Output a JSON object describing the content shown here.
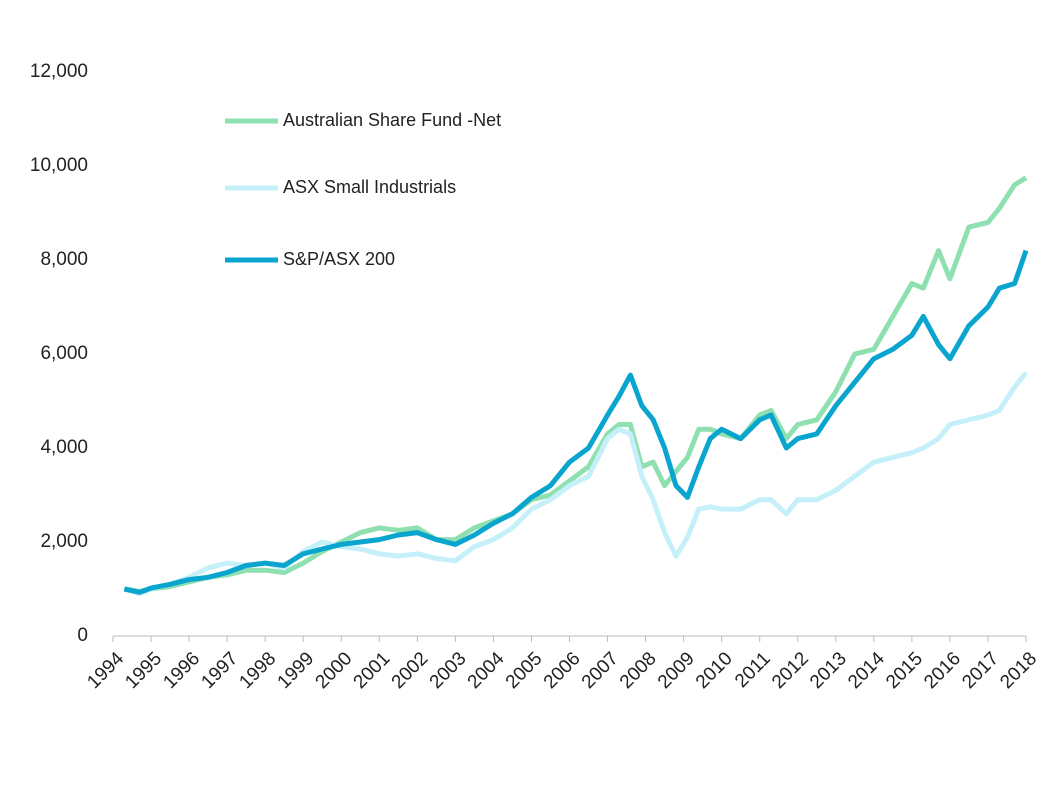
{
  "chart_data": {
    "type": "line",
    "xlim": [
      1994,
      2018
    ],
    "xticks": [
      1994,
      1995,
      1996,
      1997,
      1998,
      1999,
      2000,
      2001,
      2002,
      2003,
      2004,
      2005,
      2006,
      2007,
      2008,
      2009,
      2010,
      2011,
      2012,
      2013,
      2014,
      2015,
      2016,
      2017,
      2018
    ],
    "ylim": [
      0,
      12000
    ],
    "yticks": [
      0,
      {
        "value": 2000,
        "label": "2,000"
      },
      {
        "value": 4000,
        "label": "4,000"
      },
      {
        "value": 6000,
        "label": "6,000"
      },
      {
        "value": 8000,
        "label": "8,000"
      },
      {
        "value": 10000,
        "label": "10,000"
      },
      {
        "value": 12000,
        "label": "12,000"
      }
    ],
    "legend": "upper left",
    "x": [
      1994.3,
      1994.7,
      1995,
      1995.5,
      1996,
      1996.5,
      1997,
      1997.5,
      1998,
      1998.5,
      1999,
      1999.5,
      2000,
      2000.5,
      2001,
      2001.5,
      2002,
      2002.5,
      2003,
      2003.5,
      2004,
      2004.5,
      2005,
      2005.5,
      2006,
      2006.5,
      2007,
      2007.3,
      2007.6,
      2007.9,
      2008.2,
      2008.5,
      2008.8,
      2009.1,
      2009.4,
      2009.7,
      2010,
      2010.5,
      2011,
      2011.3,
      2011.7,
      2012,
      2012.5,
      2013,
      2013.5,
      2014,
      2014.5,
      2015,
      2015.3,
      2015.7,
      2016,
      2016.5,
      2017,
      2017.3,
      2017.7,
      2018
    ],
    "series": [
      {
        "name": "Australian Share Fund -Net",
        "color": "#8fe0b0",
        "values": [
          1000,
          950,
          1000,
          1050,
          1150,
          1250,
          1300,
          1400,
          1400,
          1350,
          1550,
          1800,
          2000,
          2200,
          2300,
          2250,
          2300,
          2050,
          2050,
          2300,
          2450,
          2600,
          2900,
          3000,
          3300,
          3600,
          4300,
          4500,
          4500,
          3600,
          3700,
          3200,
          3500,
          3800,
          4400,
          4400,
          4300,
          4200,
          4700,
          4800,
          4200,
          4500,
          4600,
          5200,
          6000,
          6100,
          6800,
          7500,
          7400,
          8200,
          7600,
          8700,
          8800,
          9100,
          9600,
          9750
        ]
      },
      {
        "name": "ASX Small Industrials",
        "color": "#c5f0fa",
        "values": [
          1000,
          900,
          1000,
          1100,
          1250,
          1450,
          1550,
          1500,
          1550,
          1450,
          1800,
          2000,
          1900,
          1850,
          1750,
          1700,
          1750,
          1650,
          1600,
          1900,
          2050,
          2300,
          2700,
          2900,
          3200,
          3400,
          4200,
          4400,
          4300,
          3400,
          2900,
          2200,
          1700,
          2100,
          2700,
          2750,
          2700,
          2700,
          2900,
          2900,
          2600,
          2900,
          2900,
          3100,
          3400,
          3700,
          3800,
          3900,
          4000,
          4200,
          4500,
          4600,
          4700,
          4800,
          5300,
          5600
        ]
      },
      {
        "name": "S&P/ASX 200",
        "color": "#0aa5cf",
        "values": [
          1000,
          930,
          1020,
          1100,
          1200,
          1250,
          1350,
          1500,
          1550,
          1500,
          1750,
          1850,
          1950,
          2000,
          2050,
          2150,
          2200,
          2050,
          1950,
          2150,
          2400,
          2600,
          2950,
          3200,
          3700,
          4000,
          4700,
          5100,
          5550,
          4900,
          4600,
          4000,
          3200,
          2950,
          3600,
          4200,
          4400,
          4200,
          4600,
          4700,
          4000,
          4200,
          4300,
          4900,
          5400,
          5900,
          6100,
          6400,
          6800,
          6200,
          5900,
          6600,
          7000,
          7400,
          7500,
          8200
        ]
      }
    ]
  }
}
